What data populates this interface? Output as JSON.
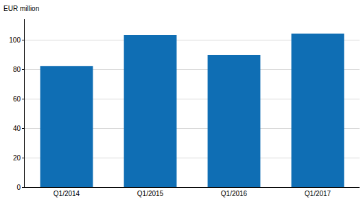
{
  "chart_data": {
    "type": "bar",
    "ylabel": "EUR million",
    "categories": [
      "Q1/2014",
      "Q1/2015",
      "Q1/2016",
      "Q1/2017"
    ],
    "values": [
      82.3,
      103.3,
      89.8,
      104.2
    ],
    "color": "#0f6eb4",
    "ylim": [
      0,
      114
    ],
    "yticks": [
      0,
      20,
      40,
      60,
      80,
      100
    ],
    "grid": true
  }
}
